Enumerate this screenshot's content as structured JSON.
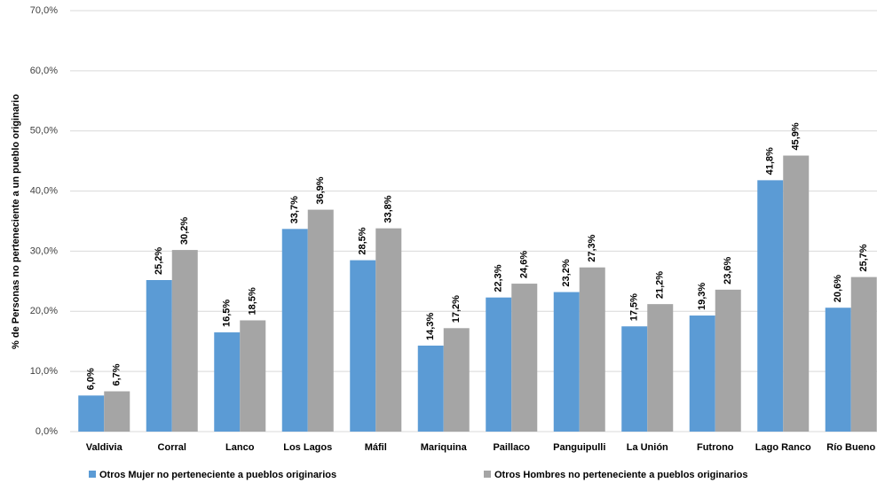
{
  "chart_data": {
    "type": "bar",
    "y_axis_label": "% de Personas no perteneciente a un pueblo originario",
    "categories": [
      "Valdivia",
      "Corral",
      "Lanco",
      "Los Lagos",
      "Máfil",
      "Mariquina",
      "Paillaco",
      "Panguipulli",
      "La Unión",
      "Futrono",
      "Lago Ranco",
      "Río Bueno"
    ],
    "series": [
      {
        "name": "Otros Mujer no perteneciente a pueblos originarios",
        "color": "#5b9bd5",
        "values": [
          6.0,
          25.2,
          16.5,
          33.7,
          28.5,
          14.3,
          22.3,
          23.2,
          17.5,
          19.3,
          41.8,
          20.6
        ],
        "value_labels": [
          "6,0%",
          "25,2%",
          "16,5%",
          "33,7%",
          "28,5%",
          "14,3%",
          "22,3%",
          "23,2%",
          "17,5%",
          "19,3%",
          "41,8%",
          "20,6%"
        ]
      },
      {
        "name": "Otros Hombres no perteneciente a pueblos originarios",
        "color": "#a5a5a5",
        "values": [
          6.7,
          30.2,
          18.5,
          36.9,
          33.8,
          17.2,
          24.6,
          27.3,
          21.2,
          23.6,
          45.9,
          25.7
        ],
        "value_labels": [
          "6,7%",
          "30,2%",
          "18,5%",
          "36,9%",
          "33,8%",
          "17,2%",
          "24,6%",
          "27,3%",
          "21,2%",
          "23,6%",
          "45,9%",
          "25,7%"
        ]
      }
    ],
    "ylim": [
      0,
      70
    ],
    "yticks": [
      {
        "value": 0,
        "label": "0,0%"
      },
      {
        "value": 10,
        "label": "10,0%"
      },
      {
        "value": 20,
        "label": "20,0%"
      },
      {
        "value": 30,
        "label": "30,0%"
      },
      {
        "value": 40,
        "label": "40,0%"
      },
      {
        "value": 50,
        "label": "50,0%"
      },
      {
        "value": 60,
        "label": "60,0%"
      },
      {
        "value": 70,
        "label": "70,0%"
      }
    ],
    "grid": true,
    "legend": "bottom"
  }
}
